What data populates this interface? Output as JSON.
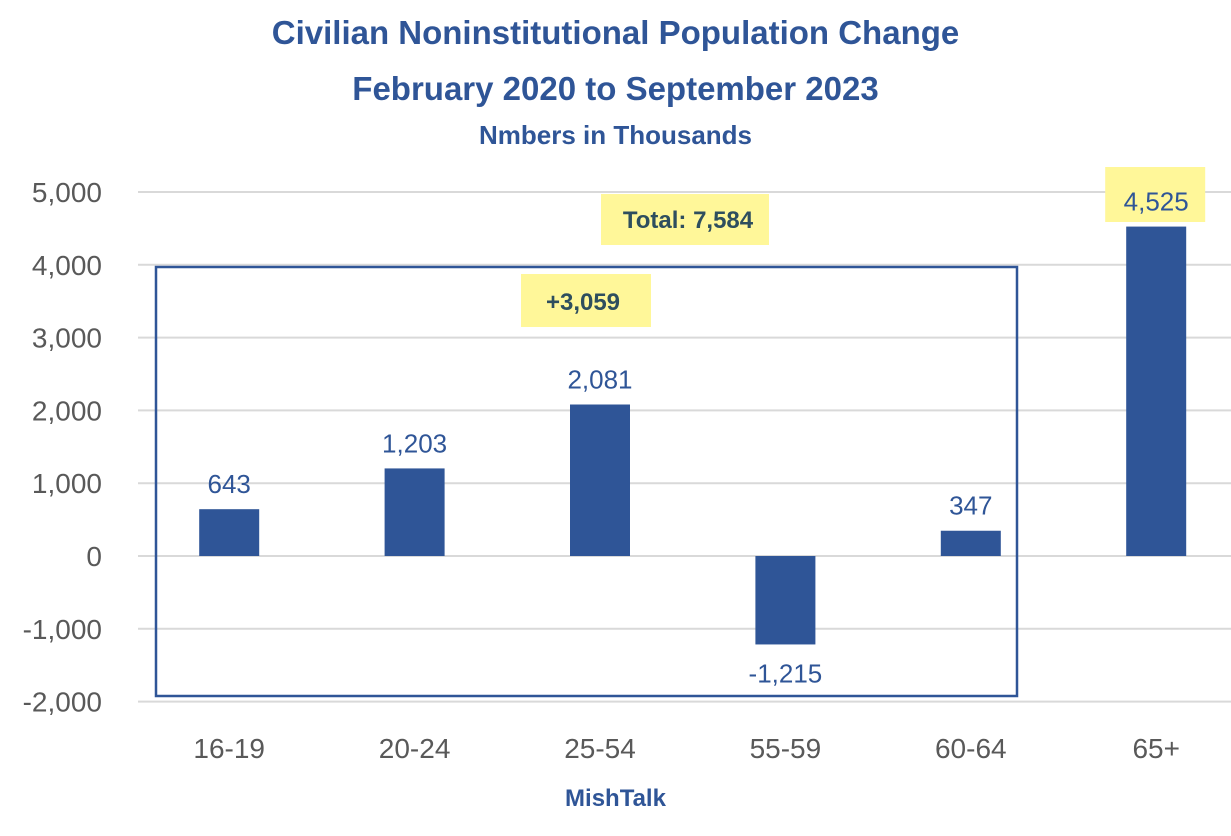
{
  "chart_data": {
    "type": "bar",
    "title": "Civilian Noninstitutional Population Change",
    "subtitle": "February 2020 to September 2023",
    "subtitle2": "Nmbers in Thousands",
    "xlabel": "MishTalk",
    "ylabel": "",
    "categories": [
      "16-19",
      "20-24",
      "25-54",
      "55-59",
      "60-64",
      "65+"
    ],
    "values": [
      643,
      1203,
      2081,
      -1215,
      347,
      4525
    ],
    "data_labels": [
      "643",
      "1,203",
      "2,081",
      "-1,215",
      "347",
      "4,525"
    ],
    "ylim": [
      -2000,
      5000
    ],
    "yticks": [
      5000,
      4000,
      3000,
      2000,
      1000,
      0,
      -1000,
      -2000
    ],
    "ytick_labels": [
      "5,000",
      "4,000",
      "3,000",
      "2,000",
      "1,000",
      "0",
      "-1,000",
      "-2,000"
    ],
    "grid": true,
    "annotations": {
      "total": "Total: 7,584",
      "subtotal": "+3,059"
    },
    "colors": {
      "bar": "#2F5597",
      "highlight": "#FFF799",
      "annotation_text": "#2E4E5E",
      "grid": "#D9D9D9"
    }
  }
}
